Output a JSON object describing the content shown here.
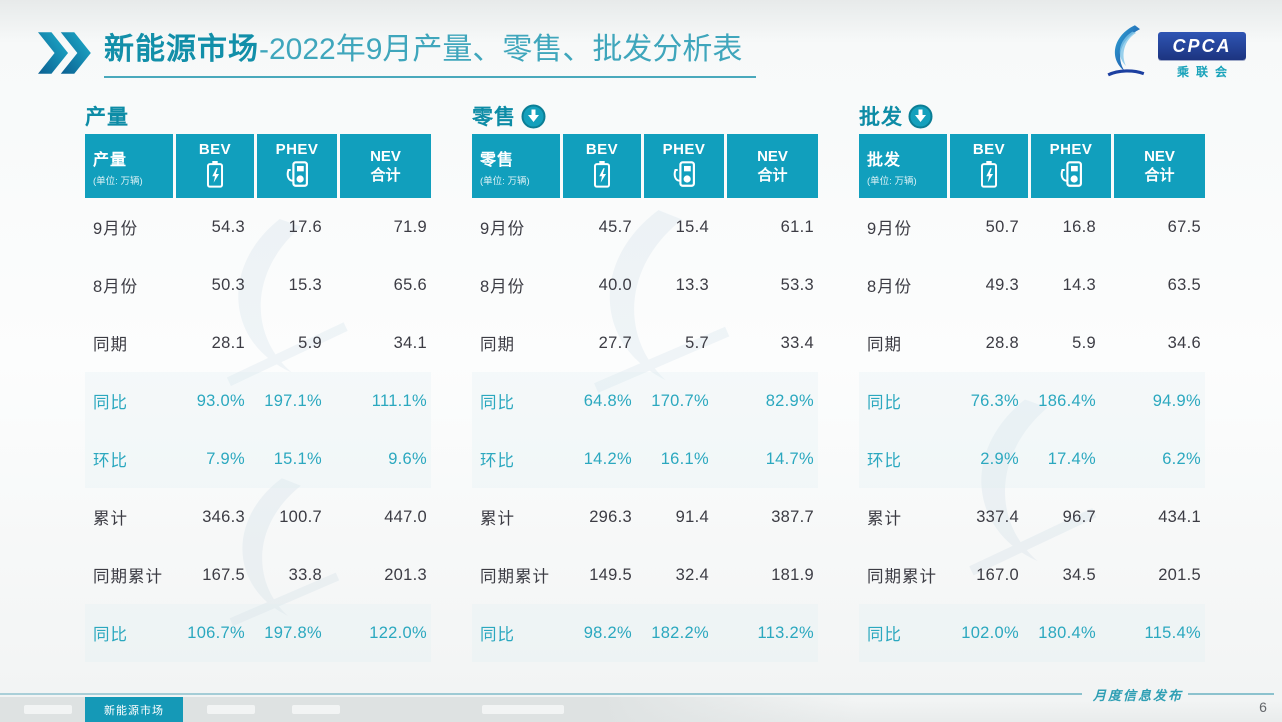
{
  "header": {
    "title_bold": "新能源市场",
    "title_rest": "-2022年9月产量、零售、批发分析表",
    "logo_text": "CPCA",
    "logo_subtext": "乘联会"
  },
  "columns": {
    "unit": "(单位: 万辆)",
    "bev": "BEV",
    "phev": "PHEV",
    "nev_line1": "NEV",
    "nev_line2": "合计"
  },
  "row_labels": [
    "9月份",
    "8月份",
    "同期",
    "同比",
    "环比",
    "累计",
    "同期累计",
    "同比"
  ],
  "teal_rows": [
    3,
    4,
    7
  ],
  "sections": [
    {
      "name": "产量",
      "arrow": false,
      "rows": [
        [
          "54.3",
          "17.6",
          "71.9"
        ],
        [
          "50.3",
          "15.3",
          "65.6"
        ],
        [
          "28.1",
          "5.9",
          "34.1"
        ],
        [
          "93.0%",
          "197.1%",
          "111.1%"
        ],
        [
          "7.9%",
          "15.1%",
          "9.6%"
        ],
        [
          "346.3",
          "100.7",
          "447.0"
        ],
        [
          "167.5",
          "33.8",
          "201.3"
        ],
        [
          "106.7%",
          "197.8%",
          "122.0%"
        ]
      ]
    },
    {
      "name": "零售",
      "arrow": true,
      "rows": [
        [
          "45.7",
          "15.4",
          "61.1"
        ],
        [
          "40.0",
          "13.3",
          "53.3"
        ],
        [
          "27.7",
          "5.7",
          "33.4"
        ],
        [
          "64.8%",
          "170.7%",
          "82.9%"
        ],
        [
          "14.2%",
          "16.1%",
          "14.7%"
        ],
        [
          "296.3",
          "91.4",
          "387.7"
        ],
        [
          "149.5",
          "32.4",
          "181.9"
        ],
        [
          "98.2%",
          "182.2%",
          "113.2%"
        ]
      ]
    },
    {
      "name": "批发",
      "arrow": true,
      "rows": [
        [
          "50.7",
          "16.8",
          "67.5"
        ],
        [
          "49.3",
          "14.3",
          "63.5"
        ],
        [
          "28.8",
          "5.9",
          "34.6"
        ],
        [
          "76.3%",
          "186.4%",
          "94.9%"
        ],
        [
          "2.9%",
          "17.4%",
          "6.2%"
        ],
        [
          "337.4",
          "96.7",
          "434.1"
        ],
        [
          "167.0",
          "34.5",
          "201.5"
        ],
        [
          "102.0%",
          "180.4%",
          "115.4%"
        ]
      ]
    }
  ],
  "footer": {
    "active_tab": "新能源市场",
    "slogan": "月度信息发布",
    "page": "6"
  },
  "colors": {
    "header_teal": "#119fbd",
    "teal_text": "#2ba8bf",
    "dark_text": "#3c3c44",
    "logo_blue": "#24429a"
  }
}
